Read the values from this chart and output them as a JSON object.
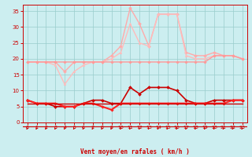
{
  "x": [
    0,
    1,
    2,
    3,
    4,
    5,
    6,
    7,
    8,
    9,
    10,
    11,
    12,
    13,
    14,
    15,
    16,
    17,
    18,
    19,
    20,
    21,
    22,
    23
  ],
  "series": [
    {
      "name": "rafales_lightest",
      "color": "#ffaaaa",
      "linewidth": 1.0,
      "marker": "D",
      "markersize": 2.0,
      "values": [
        19,
        19,
        19,
        19,
        16,
        19,
        19,
        19,
        19,
        21,
        24,
        36,
        31,
        24,
        34,
        34,
        34,
        22,
        21,
        21,
        22,
        21,
        21,
        20
      ]
    },
    {
      "name": "rafales_light",
      "color": "#ffbbbb",
      "linewidth": 1.0,
      "marker": "^",
      "markersize": 2.0,
      "values": [
        19,
        19,
        19,
        18,
        12,
        16,
        18,
        19,
        19,
        20,
        22,
        31,
        25,
        24,
        34,
        34,
        34,
        21,
        20,
        20,
        21,
        21,
        21,
        20
      ]
    },
    {
      "name": "vent_moyen_salmon",
      "color": "#ff9999",
      "linewidth": 1.0,
      "marker": "D",
      "markersize": 1.8,
      "values": [
        19,
        19,
        19,
        19,
        19,
        19,
        19,
        19,
        19,
        19,
        19,
        19,
        19,
        19,
        19,
        19,
        19,
        19,
        19,
        19,
        21,
        21,
        21,
        20
      ]
    },
    {
      "name": "vent_dark",
      "color": "#cc0000",
      "linewidth": 1.2,
      "marker": "D",
      "markersize": 2.0,
      "values": [
        7,
        6,
        6,
        5,
        5,
        5,
        6,
        7,
        7,
        6,
        6,
        11,
        9,
        11,
        11,
        11,
        10,
        7,
        6,
        6,
        7,
        7,
        7,
        7
      ]
    },
    {
      "name": "vent_bright",
      "color": "#ff2222",
      "linewidth": 1.5,
      "marker": "D",
      "markersize": 1.8,
      "values": [
        7,
        6,
        6,
        6,
        5,
        5,
        6,
        6,
        5,
        4,
        6,
        6,
        6,
        6,
        6,
        6,
        6,
        6,
        6,
        6,
        6,
        6,
        7,
        7
      ]
    },
    {
      "name": "flat_line",
      "color": "#cc0000",
      "linewidth": 1.0,
      "marker": null,
      "markersize": 0,
      "values": [
        6,
        6,
        6,
        6,
        6,
        6,
        6,
        6,
        6,
        6,
        6,
        6,
        6,
        6,
        6,
        6,
        6,
        6,
        6,
        6,
        6,
        6,
        6,
        6
      ]
    }
  ],
  "arrow_color": "#cc0000",
  "background_color": "#cceef0",
  "grid_color": "#99cccc",
  "axis_color": "#cc0000",
  "tick_color": "#cc0000",
  "label_color": "#cc0000",
  "xlabel": "Vent moyen/en rafales ( km/h )",
  "ylim": [
    0,
    37
  ],
  "yticks": [
    0,
    5,
    10,
    15,
    20,
    25,
    30,
    35
  ],
  "xticks": [
    0,
    1,
    2,
    3,
    4,
    5,
    6,
    7,
    8,
    9,
    10,
    11,
    12,
    13,
    14,
    15,
    16,
    17,
    18,
    19,
    20,
    21,
    22,
    23
  ],
  "xlabel_fontsize": 5.5,
  "ytick_fontsize": 5.0,
  "xtick_fontsize": 4.5
}
